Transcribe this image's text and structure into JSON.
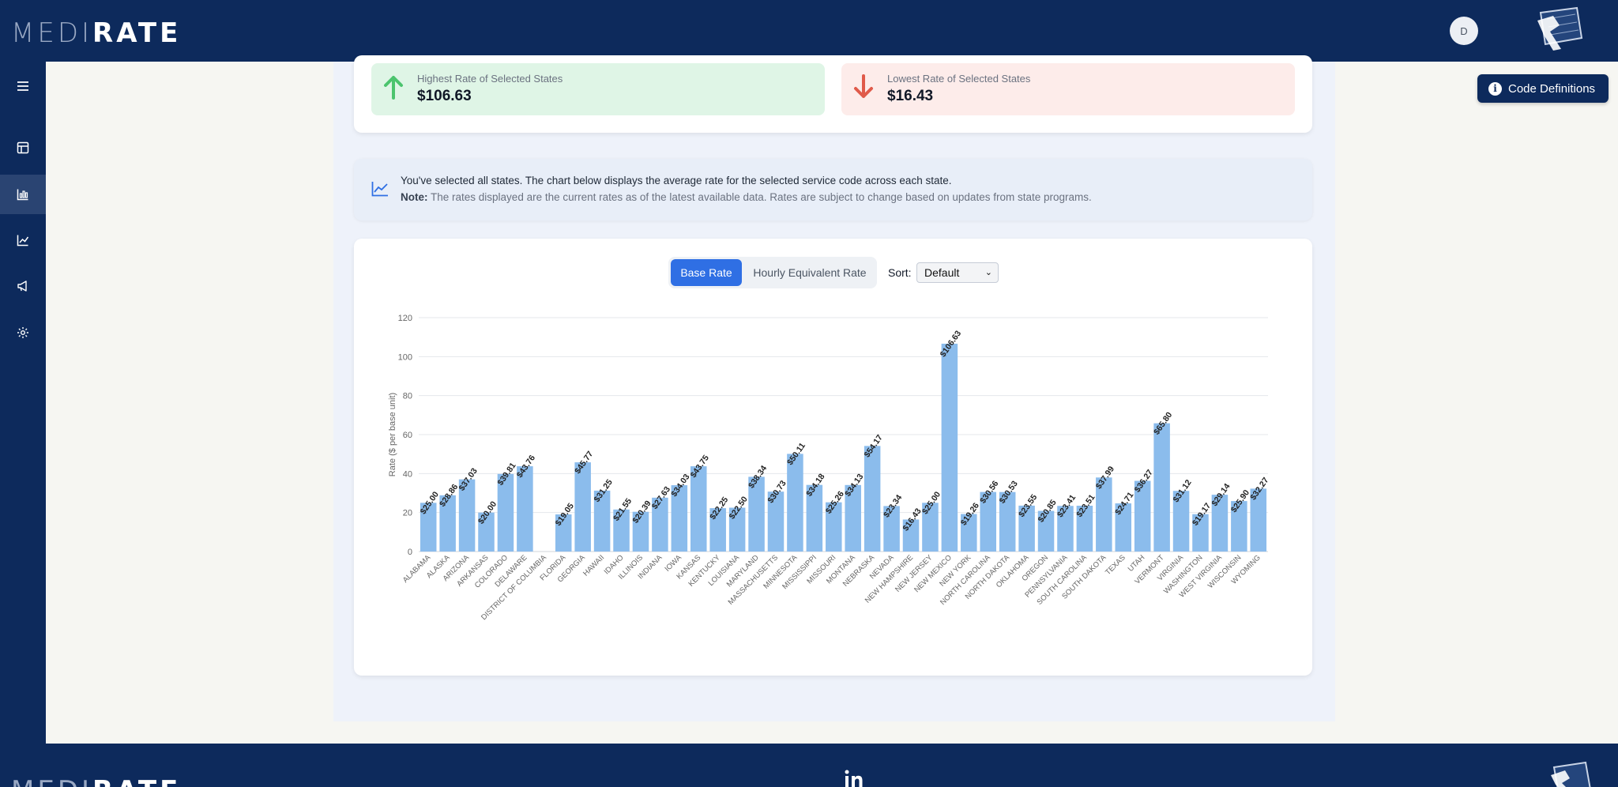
{
  "app": {
    "logo_left": "MEDI",
    "logo_right": "RATE",
    "avatar_initial": "D",
    "code_definitions_label": "Code Definitions",
    "info_icon": "i"
  },
  "sidebar": {
    "items": [
      {
        "name": "menu-icon"
      },
      {
        "name": "table-icon"
      },
      {
        "name": "bar-chart-icon",
        "active": true
      },
      {
        "name": "line-chart-icon"
      },
      {
        "name": "megaphone-icon"
      },
      {
        "name": "gear-icon"
      }
    ]
  },
  "stats": {
    "highest_label": "Highest Rate of Selected States",
    "highest_value": "$106.63",
    "lowest_label": "Lowest Rate of Selected States",
    "lowest_value": "$16.43"
  },
  "info": {
    "line1": "You've selected all states. The chart below displays the average rate for the selected service code across each state.",
    "note_label": "Note:",
    "note_text": " The rates displayed are the current rates as of the latest available data. Rates are subject to change based on updates from state programs."
  },
  "controls": {
    "base_rate_label": "Base Rate",
    "hourly_label": "Hourly Equivalent Rate",
    "sort_label": "Sort:",
    "sort_value": "Default"
  },
  "colors": {
    "navy": "#0d2a5c",
    "bar": "#8bbcec",
    "accent_blue": "#2f6fe4",
    "up_green": "#4cc46e",
    "down_red": "#e05a4a"
  },
  "chart_data": {
    "type": "bar",
    "ylabel": "Rate ($ per base unit)",
    "ylim": [
      0,
      120
    ],
    "yticks": [
      0,
      20,
      40,
      60,
      80,
      100,
      120
    ],
    "grid": true,
    "categories": [
      "ALABAMA",
      "ALASKA",
      "ARIZONA",
      "ARKANSAS",
      "COLORADO",
      "DELAWARE",
      "DISTRICT OF COLUMBIA",
      "FLORIDA",
      "GEORGIA",
      "HAWAII",
      "IDAHO",
      "ILLINOIS",
      "INDIANA",
      "IOWA",
      "KANSAS",
      "KENTUCKY",
      "LOUISIANA",
      "MARYLAND",
      "MASSACHUSETTS",
      "MINNESOTA",
      "MISSISSIPPI",
      "MISSOURI",
      "MONTANA",
      "NEBRASKA",
      "NEVADA",
      "NEW HAMPSHIRE",
      "NEW JERSEY",
      "NEW MEXICO",
      "NEW YORK",
      "NORTH CAROLINA",
      "NORTH DAKOTA",
      "OKLAHOMA",
      "OREGON",
      "PENNSYLVANIA",
      "SOUTH CAROLINA",
      "SOUTH DAKOTA",
      "TEXAS",
      "UTAH",
      "VERMONT",
      "VIRGINIA",
      "WASHINGTON",
      "WEST VIRGINIA",
      "WISCONSIN",
      "WYOMING"
    ],
    "values": [
      25.0,
      28.86,
      37.03,
      20.0,
      39.81,
      43.76,
      null,
      19.05,
      45.77,
      31.25,
      21.55,
      20.39,
      27.63,
      34.03,
      43.75,
      22.25,
      22.5,
      38.34,
      30.73,
      50.11,
      34.18,
      25.26,
      34.13,
      54.17,
      23.34,
      16.43,
      25.0,
      106.63,
      19.26,
      30.56,
      30.53,
      23.55,
      20.85,
      23.41,
      23.51,
      37.99,
      24.71,
      36.27,
      65.8,
      31.12,
      19.17,
      29.14,
      25.9,
      32.27
    ],
    "labels": [
      "$25.00",
      "$28.86",
      "$37.03",
      "$20.00",
      "$39.81",
      "$43.76",
      "",
      "$19.05",
      "$45.77",
      "$31.25",
      "$21.55",
      "$20.39",
      "$27.63",
      "$34.03",
      "$43.75",
      "$22.25",
      "$22.50",
      "$38.34",
      "$30.73",
      "$50.11",
      "$34.18",
      "$25.26",
      "$34.13",
      "$54.17",
      "$23.34",
      "$16.43",
      "$25.00",
      "$106.63",
      "$19.26",
      "$30.56",
      "$30.53",
      "$23.55",
      "$20.85",
      "$23.41",
      "$23.51",
      "$37.99",
      "$24.71",
      "$36.27",
      "$65.80",
      "$31.12",
      "$19.17",
      "$29.14",
      "$25.90",
      "$32.27"
    ]
  }
}
